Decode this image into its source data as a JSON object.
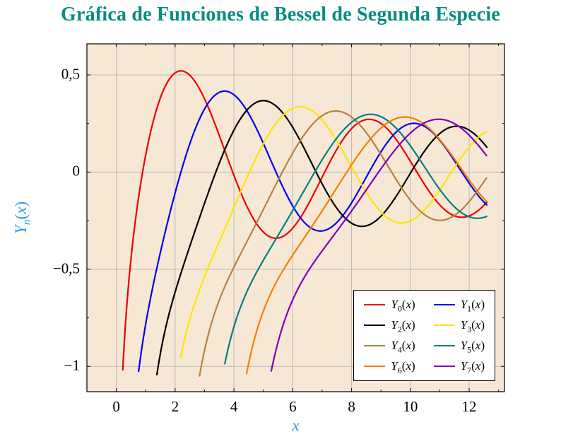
{
  "title": {
    "text": "Gráfica de Funciones de Bessel de Segunda Especie",
    "color": "#068c82"
  },
  "chart_data": {
    "type": "line",
    "title": "Gráfica de Funciones de Bessel de Segunda Especie",
    "xlabel": "x",
    "ylabel": "Y_n(x)",
    "axis_label_color": "#3399e6",
    "xlim": [
      -1.0,
      13.2
    ],
    "ylim": [
      -1.13,
      0.66
    ],
    "x_ticks": [
      0,
      2,
      4,
      6,
      8,
      10,
      12
    ],
    "x_tick_labels": [
      "0",
      "2",
      "4",
      "6",
      "8",
      "10",
      "12"
    ],
    "x_minor_ticks": [
      1,
      3,
      5,
      7,
      9,
      11,
      13
    ],
    "y_ticks": [
      0.5,
      0,
      -0.5,
      -1
    ],
    "y_tick_labels": [
      "0,5",
      "0",
      "−0,5",
      "−1"
    ],
    "y_minor_ticks": [
      0.25,
      -0.25,
      -0.75
    ],
    "grid": true,
    "background_color": "#f7e8d6",
    "grid_color": "#b9b9b9",
    "border_color": "#000000",
    "domain": [
      0.05,
      12.6
    ],
    "clip_y_min": -1.05,
    "sample_step": 0.02,
    "legend": {
      "position": "bottom-right",
      "columns": 2,
      "background": "#ffffff",
      "border_color": "#000000"
    },
    "series": [
      {
        "label": "Y_0(x)",
        "order": 0,
        "color": "#ee0000",
        "x_start": 0.2,
        "points": [
          [
            1,
            0.088
          ],
          [
            2,
            0.51
          ],
          [
            3,
            0.377
          ],
          [
            4,
            -0.017
          ],
          [
            5,
            -0.308
          ],
          [
            6,
            -0.288
          ],
          [
            7,
            -0.026
          ],
          [
            8,
            0.224
          ],
          [
            9,
            0.25
          ],
          [
            10,
            0.056
          ],
          [
            11,
            -0.169
          ],
          [
            12,
            -0.225
          ]
        ]
      },
      {
        "label": "Y_1(x)",
        "order": 1,
        "color": "#0000ee",
        "x_start": 0.74,
        "points": [
          [
            1,
            -0.781
          ],
          [
            2,
            -0.107
          ],
          [
            3,
            0.325
          ],
          [
            4,
            0.398
          ],
          [
            5,
            0.148
          ],
          [
            6,
            -0.175
          ],
          [
            7,
            -0.303
          ],
          [
            8,
            -0.158
          ],
          [
            9,
            0.104
          ],
          [
            10,
            0.249
          ],
          [
            11,
            0.164
          ],
          [
            12,
            -0.057
          ]
        ]
      },
      {
        "label": "Y_2(x)",
        "order": 2,
        "color": "#000000",
        "x_start": 1.42,
        "points": [
          [
            2,
            -0.617
          ],
          [
            3,
            -0.16
          ],
          [
            4,
            0.216
          ],
          [
            5,
            0.367
          ],
          [
            6,
            0.23
          ],
          [
            7,
            -0.061
          ],
          [
            8,
            -0.264
          ],
          [
            9,
            -0.227
          ],
          [
            10,
            -0.006
          ],
          [
            11,
            0.199
          ],
          [
            12,
            0.216
          ]
        ]
      },
      {
        "label": "Y_3(x)",
        "order": 3,
        "color": "#ffe400",
        "x_start": 2.25,
        "points": [
          [
            3,
            -0.538
          ],
          [
            4,
            -0.182
          ],
          [
            5,
            0.146
          ],
          [
            6,
            0.328
          ],
          [
            7,
            0.268
          ],
          [
            8,
            0.026
          ],
          [
            9,
            -0.205
          ],
          [
            10,
            -0.251
          ],
          [
            11,
            -0.092
          ],
          [
            12,
            0.129
          ]
        ]
      },
      {
        "label": "Y_4(x)",
        "order": 4,
        "color": "#b5803f",
        "x_start": 2.85,
        "points": [
          [
            3,
            -0.916
          ],
          [
            4,
            -0.489
          ],
          [
            5,
            -0.192
          ],
          [
            6,
            0.098
          ],
          [
            7,
            0.291
          ],
          [
            8,
            0.284
          ],
          [
            9,
            0.09
          ],
          [
            10,
            -0.145
          ],
          [
            11,
            -0.249
          ],
          [
            12,
            -0.152
          ]
        ]
      },
      {
        "label": "Y_5(x)",
        "order": 5,
        "color": "#008080",
        "x_start": 3.75,
        "points": [
          [
            4,
            -0.796
          ],
          [
            5,
            -0.453
          ],
          [
            6,
            -0.197
          ],
          [
            7,
            0.065
          ],
          [
            8,
            0.258
          ],
          [
            9,
            0.285
          ],
          [
            10,
            0.135
          ],
          [
            11,
            -0.089
          ],
          [
            12,
            -0.23
          ]
        ]
      },
      {
        "label": "Y_6(x)",
        "order": 6,
        "color": "#f97d00",
        "x_start": 4.45,
        "points": [
          [
            5,
            -0.714
          ],
          [
            6,
            -0.426
          ],
          [
            7,
            -0.198
          ],
          [
            8,
            0.039
          ],
          [
            9,
            0.227
          ],
          [
            10,
            0.28
          ],
          [
            11,
            0.168
          ],
          [
            12,
            -0.04
          ]
        ]
      },
      {
        "label": "Y_7(x)",
        "order": 7,
        "color": "#7d00b8",
        "x_start": 5.33,
        "points": [
          [
            6,
            -0.655
          ],
          [
            7,
            -0.404
          ],
          [
            8,
            -0.2
          ],
          [
            9,
            0.018
          ],
          [
            10,
            0.201
          ],
          [
            11,
            0.272
          ],
          [
            12,
            0.19
          ]
        ]
      }
    ]
  }
}
